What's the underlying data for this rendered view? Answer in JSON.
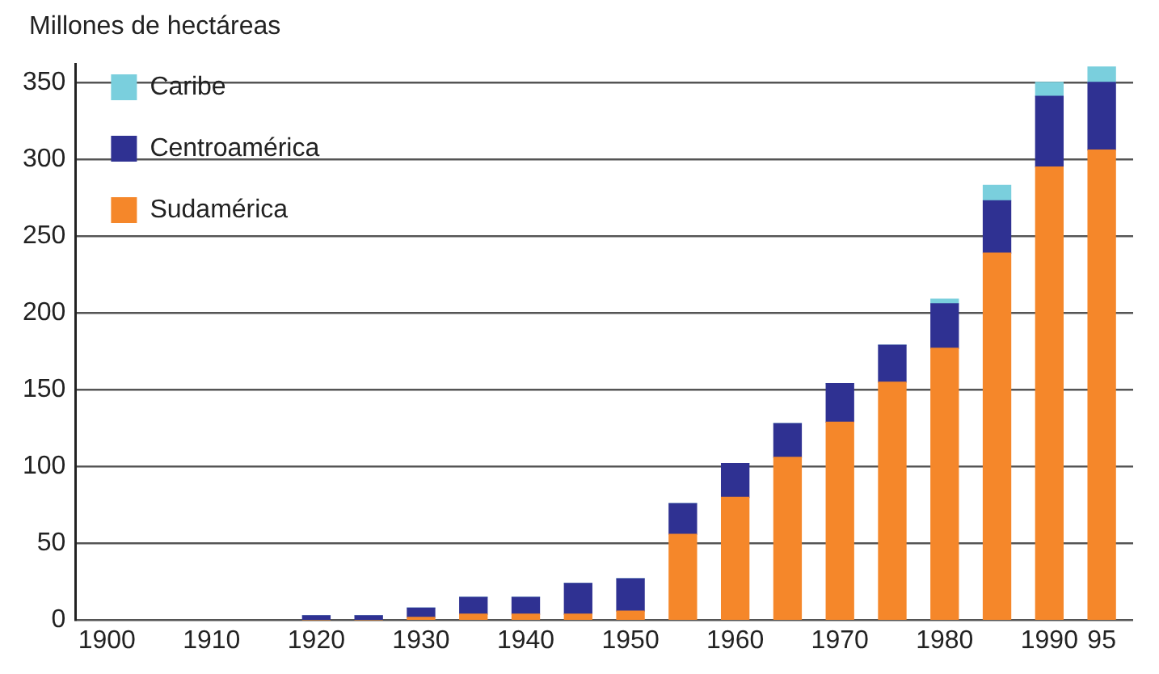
{
  "chart_data": {
    "type": "bar",
    "ylabel": "Millones de hectáreas",
    "stacked": true,
    "x": [
      1920,
      1925,
      1930,
      1935,
      1940,
      1945,
      1950,
      1955,
      1960,
      1965,
      1970,
      1975,
      1980,
      1985,
      1990,
      1995
    ],
    "series": [
      {
        "name": "Sudamérica",
        "color": "#f5872a",
        "values": [
          0,
          0,
          2,
          4,
          4,
          4,
          6,
          56,
          80,
          106,
          129,
          155,
          177,
          239,
          295,
          306
        ]
      },
      {
        "name": "Centroamérica",
        "color": "#2f3192",
        "values": [
          3,
          3,
          6,
          11,
          11,
          20,
          21,
          20,
          22,
          22,
          25,
          24,
          29,
          34,
          46,
          44
        ]
      },
      {
        "name": "Caribe",
        "color": "#7acfdd",
        "values": [
          0,
          0,
          0,
          0,
          0,
          0,
          0,
          0,
          0,
          0,
          0,
          0,
          3,
          10,
          9,
          10
        ]
      }
    ],
    "xlim": [
      1897,
      1998
    ],
    "xticks": [
      1900,
      1910,
      1920,
      1930,
      1940,
      1950,
      1960,
      1970,
      1980,
      1990,
      {
        "value": 1995,
        "label": "95"
      }
    ],
    "ylim": [
      0,
      362
    ],
    "yticks": [
      0,
      50,
      100,
      150,
      200,
      250,
      300,
      350
    ],
    "grid": "y",
    "legend": "top left"
  }
}
